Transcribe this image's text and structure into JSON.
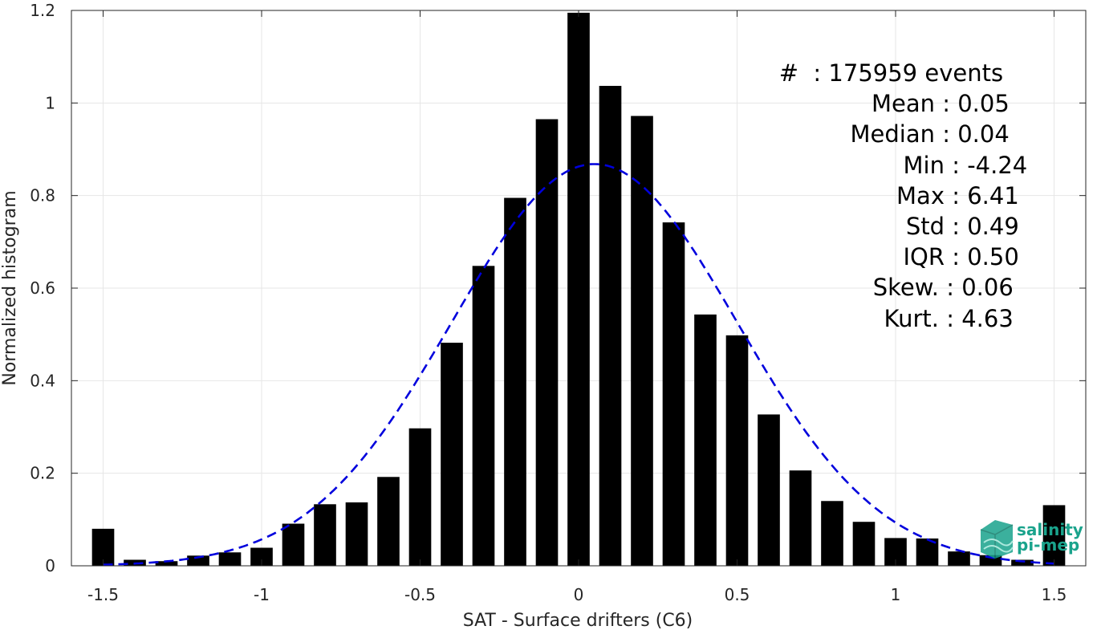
{
  "chart_data": {
    "type": "bar",
    "xlabel": "SAT - Surface drifters (C6)",
    "ylabel": "Normalized histogram",
    "xlim": [
      -1.6,
      1.6
    ],
    "ylim": [
      0,
      1.2
    ],
    "xticks": [
      -1.5,
      -1,
      -0.5,
      0,
      0.5,
      1,
      1.5
    ],
    "xtick_labels": [
      "-1.5",
      "-1",
      "-0.5",
      "0",
      "0.5",
      "1",
      "1.5"
    ],
    "yticks": [
      0,
      0.2,
      0.4,
      0.6,
      0.8,
      1.0,
      1.2
    ],
    "ytick_labels": [
      "0",
      "0.2",
      "0.4",
      "0.6",
      "0.8",
      "1",
      "1.2"
    ],
    "grid": true,
    "bar_color": "#000000",
    "bar_width": 0.07,
    "x": [
      -1.5,
      -1.4,
      -1.3,
      -1.2,
      -1.1,
      -1.0,
      -0.9,
      -0.8,
      -0.7,
      -0.6,
      -0.5,
      -0.4,
      -0.3,
      -0.2,
      -0.1,
      0.0,
      0.1,
      0.2,
      0.3,
      0.4,
      0.5,
      0.6,
      0.7,
      0.8,
      0.9,
      1.0,
      1.1,
      1.2,
      1.3,
      1.4,
      1.5
    ],
    "values": [
      0.08,
      0.013,
      0.01,
      0.022,
      0.029,
      0.039,
      0.091,
      0.133,
      0.137,
      0.192,
      0.297,
      0.482,
      0.648,
      0.795,
      0.965,
      1.195,
      1.037,
      0.972,
      0.742,
      0.543,
      0.498,
      0.327,
      0.206,
      0.14,
      0.095,
      0.06,
      0.059,
      0.031,
      0.023,
      0.013,
      0.131
    ],
    "fit": {
      "type": "gaussian",
      "style": "dashed",
      "color": "#0000dd",
      "mean": 0.05,
      "sigma": 0.45,
      "peak": 0.868
    },
    "stats": [
      {
        "label": "#",
        "value": "  : 175959 events"
      },
      {
        "label": "Mean",
        "value": " : 0.05"
      },
      {
        "label": "Median",
        "value": " : 0.04"
      },
      {
        "label": "Min",
        "value": " : -4.24"
      },
      {
        "label": "Max",
        "value": " : 6.41"
      },
      {
        "label": "Std",
        "value": " : 0.49"
      },
      {
        "label": "IQR",
        "value": " : 0.50"
      },
      {
        "label": "Skew.",
        "value": " : 0.06"
      },
      {
        "label": "Kurt.",
        "value": " : 4.63"
      }
    ]
  },
  "logo": {
    "line1": "salinity",
    "line2": "pi-mep",
    "icon": "wave-cube-icon",
    "color": "#1aa38c"
  }
}
